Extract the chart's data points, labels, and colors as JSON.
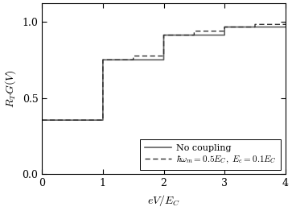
{
  "title": "",
  "xlabel": "$eV/E_C$",
  "ylabel": "$R_T G(V)$",
  "xlim": [
    0,
    4
  ],
  "ylim": [
    0,
    1.12
  ],
  "yticks": [
    0,
    0.5,
    1
  ],
  "xticks": [
    0,
    1,
    2,
    3,
    4
  ],
  "solid_x": [
    0,
    1,
    1,
    2,
    2,
    3,
    3,
    4,
    4.1
  ],
  "solid_y": [
    0.355,
    0.355,
    0.75,
    0.75,
    0.912,
    0.912,
    0.965,
    0.965,
    1.0
  ],
  "dashed_x": [
    0,
    1,
    1,
    1.5,
    1.5,
    2,
    2,
    2.5,
    2.5,
    3,
    3,
    3.5,
    3.5,
    4,
    4.1
  ],
  "dashed_y": [
    0.355,
    0.355,
    0.75,
    0.75,
    0.775,
    0.775,
    0.912,
    0.912,
    0.938,
    0.938,
    0.965,
    0.965,
    0.982,
    0.982,
    1.0
  ],
  "solid_color": "#606060",
  "dashed_color": "#303030",
  "legend_solid": "No coupling",
  "legend_dashed": "$\\hbar\\omega_m = 0.5E_C,\\ E_e = 0.1E_C$",
  "legend_loc": "lower right",
  "figsize": [
    3.63,
    2.62
  ],
  "dpi": 100,
  "fontsize_label": 10,
  "fontsize_tick": 9,
  "fontsize_legend": 8
}
